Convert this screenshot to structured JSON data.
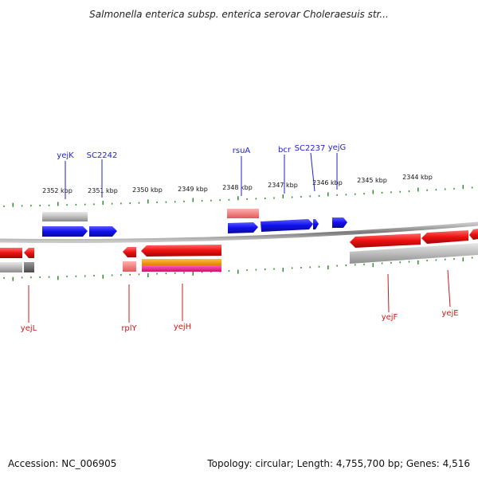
{
  "title": "Salmonella enterica subsp. enterica serovar Choleraesuis str...",
  "footer": {
    "accession": "Accession: NC_006905",
    "summary": "Topology: circular; Length: 4,755,700 bp; Genes: 4,516"
  },
  "scale_labels": [
    "2352 kbp",
    "2351 kbp",
    "2350 kbp",
    "2349 kbp",
    "2348 kbp",
    "2347 kbp",
    "2346 kbp",
    "2345 kbp",
    "2344 kbp"
  ],
  "genes_forward": [
    "yejK",
    "SC2242",
    "rsuA",
    "bcr",
    "SC2237",
    "yejG"
  ],
  "genes_reverse": [
    "yejL",
    "rplY",
    "yejH",
    "yejF",
    "yejE"
  ],
  "colors": {
    "forward_gene": "#1a1aee",
    "reverse_gene": "#ee1a1a",
    "label_forward": "#1f1fd0",
    "label_reverse": "#d01818",
    "backbone": "#8a8a8a",
    "tick": "#2e8b2e"
  }
}
